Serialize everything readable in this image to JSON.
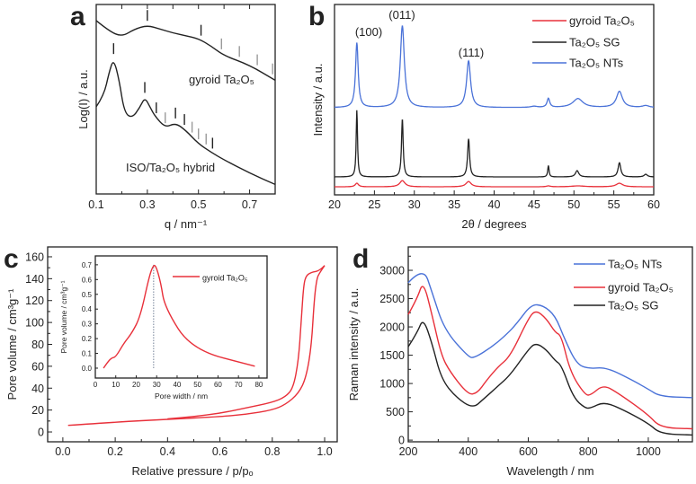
{
  "panel_letters": [
    "a",
    "b",
    "c",
    "d"
  ],
  "colors": {
    "red": "#e8303a",
    "black": "#222222",
    "blue": "#4a72d8",
    "gray": "#9a9a9a",
    "dashed": "#8a96a8"
  },
  "chart_data": [
    {
      "panel": "a",
      "type": "line",
      "xlabel": "q / nm⁻¹",
      "ylabel": "Log(I) / a.u.",
      "xlim": [
        0.1,
        0.8
      ],
      "ylim": [
        0,
        100
      ],
      "xticks": [
        0.1,
        0.3,
        0.5,
        0.7
      ],
      "xticks_labels": [
        "0.1",
        "0.3",
        "0.5",
        "0.7"
      ],
      "xminor": [
        0.2,
        0.4,
        0.6,
        0.8
      ],
      "series": [
        {
          "name": "gyroid Ta₂O₅",
          "color": "#222222",
          "x": [
            0.1,
            0.15,
            0.2,
            0.25,
            0.3,
            0.35,
            0.4,
            0.45,
            0.5,
            0.55,
            0.6,
            0.7,
            0.8
          ],
          "y": [
            91.5,
            86,
            83,
            87,
            89,
            87,
            85,
            83.5,
            82,
            78,
            73,
            68,
            60
          ]
        },
        {
          "name": "ISO/Ta₂O₅ hybrid",
          "color": "#222222",
          "x": [
            0.1,
            0.13,
            0.15,
            0.168,
            0.19,
            0.21,
            0.24,
            0.27,
            0.29,
            0.31,
            0.33,
            0.37,
            0.41,
            0.45,
            0.5,
            0.55,
            0.6,
            0.7,
            0.8
          ],
          "y": [
            46,
            52,
            64,
            71.5,
            60,
            43,
            40,
            45.5,
            51,
            46,
            41,
            35,
            37.5,
            33.6,
            26.5,
            22,
            18,
            11,
            5
          ]
        }
      ],
      "reflection_markers": [
        {
          "series": 0,
          "q": 0.3,
          "color": "black"
        },
        {
          "series": 0,
          "q": 0.51,
          "color": "black"
        },
        {
          "series": 0,
          "q": 0.59,
          "color": "gray"
        },
        {
          "series": 0,
          "q": 0.66,
          "color": "gray"
        },
        {
          "series": 0,
          "q": 0.73,
          "color": "gray"
        },
        {
          "series": 0,
          "q": 0.79,
          "color": "gray"
        },
        {
          "series": 1,
          "q": 0.168,
          "color": "black"
        },
        {
          "series": 1,
          "q": 0.29,
          "color": "black"
        },
        {
          "series": 1,
          "q": 0.335,
          "color": "black"
        },
        {
          "series": 1,
          "q": 0.37,
          "color": "gray"
        },
        {
          "series": 1,
          "q": 0.41,
          "color": "black"
        },
        {
          "series": 1,
          "q": 0.445,
          "color": "black"
        },
        {
          "series": 1,
          "q": 0.475,
          "color": "gray"
        },
        {
          "series": 1,
          "q": 0.5,
          "color": "gray"
        },
        {
          "series": 1,
          "q": 0.53,
          "color": "gray"
        },
        {
          "series": 1,
          "q": 0.555,
          "color": "black"
        }
      ],
      "annotations": [
        "gyroid Ta₂O₅",
        "ISO/Ta₂O₅ hybrid"
      ]
    },
    {
      "panel": "b",
      "type": "line",
      "xlabel": "2θ / degrees",
      "ylabel": "Intensity / a.u.",
      "xlim": [
        20,
        60
      ],
      "ylim": [
        0,
        100
      ],
      "xticks": [
        20,
        25,
        30,
        35,
        40,
        45,
        50,
        55,
        60
      ],
      "xticks_labels": [
        "20",
        "25",
        "30",
        "35",
        "40",
        "45",
        "50",
        "55",
        "60"
      ],
      "xminor": [
        22.5,
        27.5,
        32.5,
        37.5,
        42.5,
        47.5,
        52.5,
        57.5
      ],
      "legend_position": "top-right",
      "series": [
        {
          "name": "gyroid Ta₂O₅",
          "color": "#e8303a",
          "baseline": 4.2,
          "peaks": [
            [
              22.8,
              1.9,
              0.5
            ],
            [
              28.5,
              3.3,
              0.8
            ],
            [
              36.8,
              2.8,
              0.8
            ],
            [
              46.8,
              0.5,
              0.6
            ],
            [
              50.5,
              0.5,
              2.0
            ],
            [
              55.7,
              1.9,
              1.0
            ]
          ]
        },
        {
          "name": "Ta₂O₅ SG",
          "color": "#222222",
          "baseline": 9.4,
          "peaks": [
            [
              22.8,
              35,
              0.2
            ],
            [
              28.5,
              30.6,
              0.25
            ],
            [
              36.8,
              20,
              0.3
            ],
            [
              46.8,
              6,
              0.2
            ],
            [
              50.4,
              3.3,
              0.5
            ],
            [
              55.7,
              7.5,
              0.4
            ],
            [
              59,
              1.4,
              0.5
            ]
          ]
        },
        {
          "name": "Ta₂O₅ NTs",
          "color": "#4a72d8",
          "baseline": 45.8,
          "peaks": [
            [
              22.8,
              34,
              0.4
            ],
            [
              28.5,
              43,
              0.6
            ],
            [
              36.8,
              24.5,
              0.6
            ],
            [
              45,
              0.6,
              1.0
            ],
            [
              46.8,
              4.7,
              0.4
            ],
            [
              50.5,
              4.7,
              1.5
            ],
            [
              55.7,
              8.5,
              0.9
            ],
            [
              59,
              1,
              1.0
            ]
          ]
        }
      ],
      "annotations": [
        "(100)",
        "(011)",
        "(111)"
      ]
    },
    {
      "panel": "c",
      "type": "line",
      "xlabel": "Relative pressure / p/pₒ",
      "ylabel": "Pore volume  / cm³g⁻¹",
      "xlim": [
        -0.058,
        1.048
      ],
      "ylim": [
        -9,
        169
      ],
      "xticks": [
        0,
        0.2,
        0.4,
        0.6,
        0.8,
        1.0
      ],
      "xticks_labels": [
        "0.0",
        "0.2",
        "0.4",
        "0.6",
        "0.8",
        "1.0"
      ],
      "xminor": [
        0.1,
        0.3,
        0.5,
        0.7,
        0.9
      ],
      "yticks": [
        0,
        20,
        40,
        60,
        80,
        100,
        120,
        140,
        160
      ],
      "yticks_labels": [
        "0",
        "20",
        "40",
        "60",
        "80",
        "100",
        "120",
        "140",
        "160"
      ],
      "yminor": [
        10,
        30,
        50,
        70,
        90,
        110,
        130,
        150
      ],
      "series": [
        {
          "color": "#e8303a",
          "x": [
            0.02,
            0.2,
            0.4,
            0.6,
            0.7,
            0.8,
            0.85,
            0.9,
            0.93,
            0.95,
            0.96,
            0.97,
            0.98,
            1.0
          ],
          "y": [
            6,
            9,
            11.5,
            14,
            16,
            20,
            25,
            35,
            50,
            80,
            120,
            140,
            145,
            152
          ]
        },
        {
          "color": "#e8303a",
          "x": [
            1.0,
            0.98,
            0.95,
            0.93,
            0.92,
            0.91,
            0.9,
            0.88,
            0.85,
            0.8,
            0.7,
            0.6,
            0.5,
            0.4
          ],
          "y": [
            152,
            147,
            146,
            143,
            135,
            100,
            65,
            40,
            32,
            27,
            22,
            17,
            14,
            12
          ]
        }
      ]
    },
    {
      "panel": "c-inset",
      "type": "line",
      "xlabel": "Pore width / nm",
      "ylabel": "Pore volume  / cm³g⁻¹",
      "xlim": [
        0,
        84
      ],
      "ylim": [
        -0.067,
        0.76
      ],
      "xticks": [
        0,
        10,
        20,
        30,
        40,
        50,
        60,
        70,
        80
      ],
      "xticks_labels": [
        "0",
        "10",
        "20",
        "30",
        "40",
        "50",
        "60",
        "70",
        "80"
      ],
      "yticks": [
        0,
        0.1,
        0.2,
        0.3,
        0.4,
        0.5,
        0.6,
        0.7
      ],
      "yticks_labels": [
        "0.0",
        "0.1",
        "0.2",
        "0.3",
        "0.4",
        "0.5",
        "0.6",
        "0.7"
      ],
      "legend_position": "top-right",
      "series": [
        {
          "name": "gyroid Ta₂O₅",
          "color": "#e8303a",
          "x": [
            4,
            6,
            8,
            10,
            14,
            18,
            22,
            26,
            28,
            29.5,
            32,
            34,
            47,
            78
          ],
          "y": [
            0,
            0.04,
            0.07,
            0.075,
            0.17,
            0.24,
            0.35,
            0.6,
            0.69,
            0.7,
            0.58,
            0.41,
            0.125,
            0.013
          ]
        }
      ],
      "reference_line": {
        "x": 28.5,
        "y": [
          0,
          0.7
        ],
        "style": "dotted"
      }
    },
    {
      "panel": "d",
      "type": "line",
      "xlabel": "Wavelength / nm",
      "ylabel": "Raman intensity / a.u.",
      "xlim": [
        200,
        1147
      ],
      "ylim": [
        -30,
        3413
      ],
      "xticks": [
        200,
        400,
        600,
        800,
        1000
      ],
      "xticks_labels": [
        "200",
        "400",
        "600",
        "800",
        "1000"
      ],
      "xminor": [
        300,
        500,
        700,
        900,
        1100
      ],
      "yticks": [
        0,
        500,
        1000,
        1500,
        2000,
        2500,
        3000
      ],
      "yticks_labels": [
        "0",
        "500",
        "1000",
        "1500",
        "2000",
        "2500",
        "3000"
      ],
      "yminor": [
        250,
        750,
        1250,
        1750,
        2250,
        2750,
        3250
      ],
      "legend_position": "top-right",
      "series": [
        {
          "name": "Ta₂O₅ NTs",
          "color": "#4a72d8",
          "x": [
            200,
            250,
            280,
            320,
            400,
            420,
            480,
            530,
            560,
            610,
            650,
            690,
            720,
            760,
            800,
            860,
            950,
            1000,
            1040,
            1147
          ],
          "y": [
            2780,
            3070,
            2600,
            1950,
            1470,
            1450,
            1650,
            1880,
            2050,
            2400,
            2380,
            2200,
            1800,
            1350,
            1260,
            1290,
            1050,
            900,
            770,
            750
          ]
        },
        {
          "name": "gyroid Ta₂O₅",
          "color": "#e8303a",
          "x": [
            200,
            230,
            250,
            280,
            310,
            340,
            400,
            430,
            460,
            500,
            540,
            600,
            625,
            660,
            690,
            710,
            740,
            790,
            810,
            850,
            900,
            1000,
            1040,
            1147
          ],
          "y": [
            2220,
            2500,
            2820,
            2200,
            1500,
            1200,
            800,
            830,
            1050,
            1300,
            1480,
            2150,
            2300,
            2150,
            1900,
            1850,
            1200,
            790,
            800,
            980,
            830,
            450,
            220,
            200
          ]
        },
        {
          "name": "Ta₂O₅ SG",
          "color": "#222222",
          "x": [
            200,
            230,
            250,
            280,
            310,
            360,
            415,
            450,
            500,
            540,
            600,
            625,
            660,
            690,
            710,
            750,
            790,
            810,
            850,
            900,
            1000,
            1040,
            1147
          ],
          "y": [
            1650,
            1900,
            2160,
            1700,
            1080,
            750,
            560,
            720,
            960,
            1150,
            1600,
            1720,
            1600,
            1400,
            1330,
            750,
            560,
            570,
            670,
            580,
            300,
            110,
            90
          ]
        }
      ]
    }
  ]
}
